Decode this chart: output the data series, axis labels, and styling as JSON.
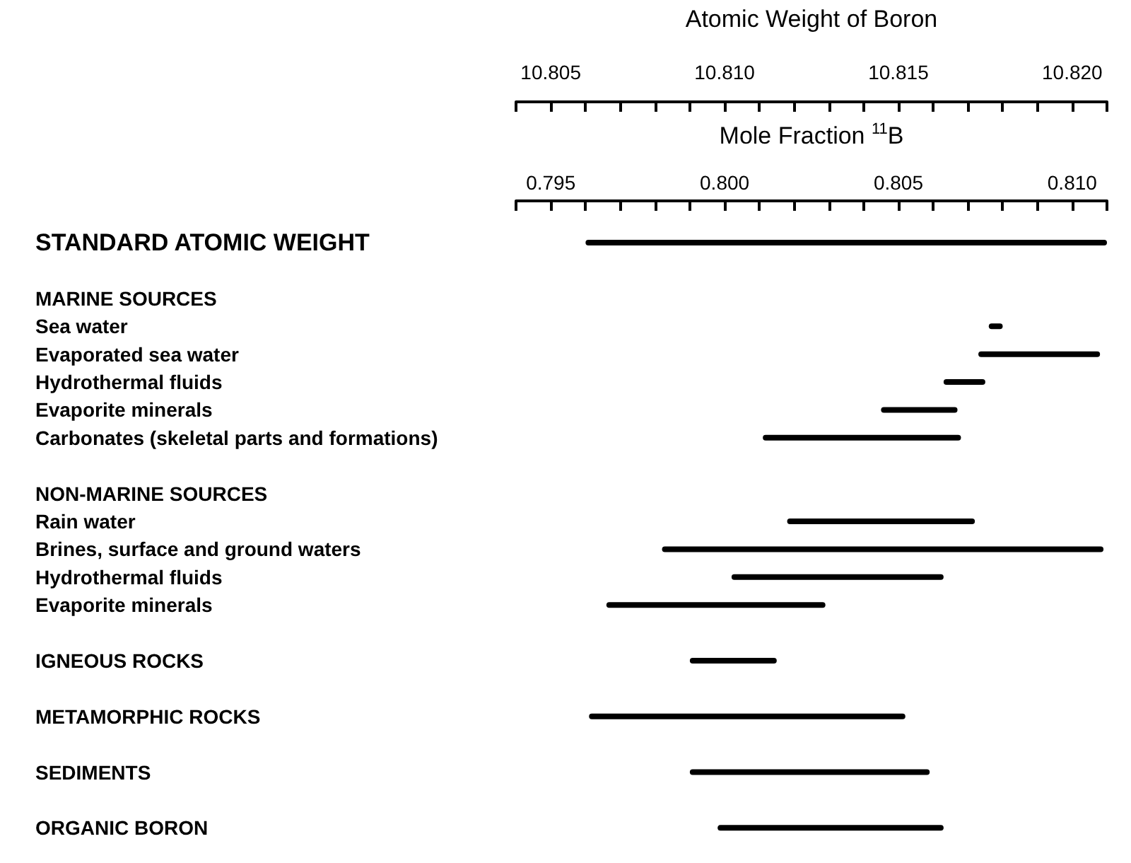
{
  "chart_data": {
    "type": "bar",
    "orientation": "horizontal",
    "color": "#000000",
    "grid": false,
    "xlabel": "Mole Fraction $^{11}$B",
    "x2label": "Atomic Weight of Boron",
    "categories": [
      null,
      "STANDARD ATOMIC WEIGHT",
      null,
      "MARINE SOURCES",
      "Sea water",
      "Evaporated sea water",
      "Hydrothermal fluids",
      "Evaporite minerals",
      "Carbonates (skeletal parts and formations)",
      null,
      "NON-MARINE SOURCES",
      "Rain water",
      "Brines, surface and ground waters",
      "Hydrothermal fluids",
      "Evaporite minerals",
      null,
      "IGNEOUS ROCKS",
      null,
      "METAMORPHIC ROCKS",
      null,
      "SEDIMENTS",
      null,
      "ORGANIC BORON"
    ],
    "base": [
      null,
      0.796,
      null,
      null,
      0.8076,
      0.8073,
      0.8063,
      0.8045,
      0.8011,
      null,
      null,
      0.8018,
      0.7982,
      0.8002,
      0.7966,
      null,
      0.799,
      null,
      0.7961,
      null,
      0.799,
      null,
      0.7998
    ],
    "values": [
      null,
      0.015,
      null,
      null,
      0.0004,
      0.0035,
      0.0012,
      0.0022,
      0.0057,
      null,
      null,
      0.0054,
      0.0127,
      0.0061,
      0.0063,
      null,
      0.0025,
      null,
      0.0091,
      null,
      0.0069,
      null,
      0.0065
    ],
    "xlim": [
      0.794,
      0.811
    ],
    "xticks": [
      {
        "value": 0.794,
        "label": null
      },
      {
        "value": 0.795,
        "label": "0.795"
      },
      {
        "value": 0.796,
        "label": null
      },
      {
        "value": 0.797,
        "label": null
      },
      {
        "value": 0.798,
        "label": null
      },
      {
        "value": 0.799,
        "label": null
      },
      {
        "value": 0.8,
        "label": "0.800"
      },
      {
        "value": 0.801,
        "label": null
      },
      {
        "value": 0.802,
        "label": null
      },
      {
        "value": 0.803,
        "label": null
      },
      {
        "value": 0.804,
        "label": null
      },
      {
        "value": 0.805,
        "label": "0.805"
      },
      {
        "value": 0.806,
        "label": null
      },
      {
        "value": 0.807,
        "label": null
      },
      {
        "value": 0.808,
        "label": null
      },
      {
        "value": 0.809,
        "label": null
      },
      {
        "value": 0.81,
        "label": "0.810"
      },
      {
        "value": 0.811,
        "label": null
      }
    ],
    "x2lim": [
      10.804,
      10.821
    ],
    "x2ticks": [
      {
        "value": 10.804,
        "label": null
      },
      {
        "value": 10.805,
        "label": "10.805"
      },
      {
        "value": 10.806,
        "label": null
      },
      {
        "value": 10.807,
        "label": null
      },
      {
        "value": 10.808,
        "label": null
      },
      {
        "value": 10.809,
        "label": null
      },
      {
        "value": 10.81,
        "label": "10.810"
      },
      {
        "value": 10.811,
        "label": null
      },
      {
        "value": 10.812,
        "label": null
      },
      {
        "value": 10.813,
        "label": null
      },
      {
        "value": 10.814,
        "label": null
      },
      {
        "value": 10.815,
        "label": "10.815"
      },
      {
        "value": 10.816,
        "label": null
      },
      {
        "value": 10.817,
        "label": null
      },
      {
        "value": 10.818,
        "label": null
      },
      {
        "value": 10.819,
        "label": null
      },
      {
        "value": 10.82,
        "label": "10.820"
      },
      {
        "value": 10.821,
        "label": null
      }
    ]
  }
}
